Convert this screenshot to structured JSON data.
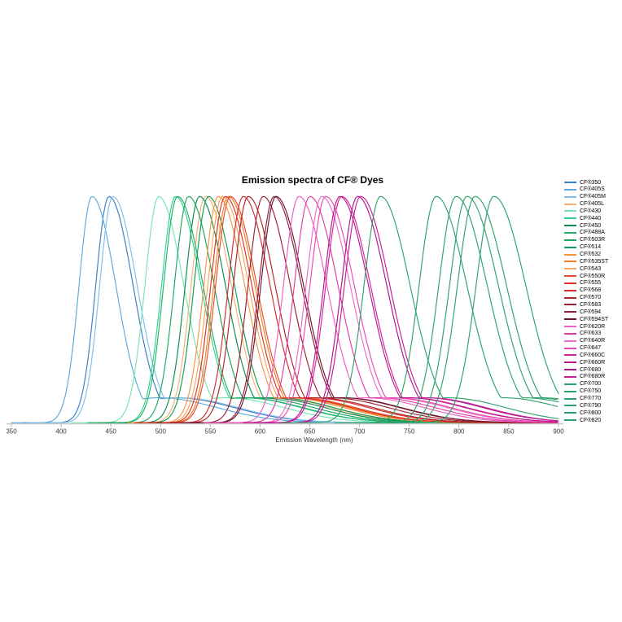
{
  "figure": {
    "title": "Emission spectra of CF® Dyes",
    "xlabel": "Emission Wavelength (nm)"
  },
  "chart_data": {
    "type": "line",
    "title": "Emission spectra of CF® Dyes",
    "xlabel": "Emission Wavelength (nm)",
    "ylabel": "",
    "xlim": [
      350,
      900
    ],
    "ylim": [
      0,
      1.05
    ],
    "x_ticks": [
      350,
      400,
      450,
      500,
      550,
      600,
      650,
      700,
      750,
      800,
      850,
      900
    ],
    "grid": false,
    "legend_position": "right",
    "normalization": "each emission spectrum normalized to a peak intensity of 1",
    "curve_shape": "asymmetric spectral band: steep short-wavelength rise, long-wavelength decay with low shoulder tail",
    "series": [
      {
        "name": "CF®350",
        "color": "#3a7ec6",
        "peak_nm": 448
      },
      {
        "name": "CF®405S",
        "color": "#5aaade",
        "peak_nm": 431
      },
      {
        "name": "CF®405M",
        "color": "#82bfe8",
        "peak_nm": 452
      },
      {
        "name": "CF®405L",
        "color": "#f7b171",
        "peak_nm": 545
      },
      {
        "name": "CF®430",
        "color": "#74e6b2",
        "peak_nm": 498
      },
      {
        "name": "CF®440",
        "color": "#2fd392",
        "peak_nm": 515
      },
      {
        "name": "CF®450",
        "color": "#0d8a4c",
        "peak_nm": 539
      },
      {
        "name": "CF®488A",
        "color": "#21b166",
        "peak_nm": 517
      },
      {
        "name": "CF®503R",
        "color": "#1ea463",
        "peak_nm": 528
      },
      {
        "name": "CF®514",
        "color": "#109c58",
        "peak_nm": 548
      },
      {
        "name": "CF®532",
        "color": "#f7943f",
        "peak_nm": 558
      },
      {
        "name": "CF®535ST",
        "color": "#ef7e23",
        "peak_nm": 568
      },
      {
        "name": "CF®543",
        "color": "#f8a75e",
        "peak_nm": 562
      },
      {
        "name": "CF®550R",
        "color": "#e94c2b",
        "peak_nm": 570
      },
      {
        "name": "CF®555",
        "color": "#e03123",
        "peak_nm": 565
      },
      {
        "name": "CF®568",
        "color": "#d62a2e",
        "peak_nm": 583
      },
      {
        "name": "CF®570",
        "color": "#b12325",
        "peak_nm": 588
      },
      {
        "name": "CF®583",
        "color": "#9d2030",
        "peak_nm": 603
      },
      {
        "name": "CF®594",
        "color": "#8e1f3d",
        "peak_nm": 614
      },
      {
        "name": "CF®594ST",
        "color": "#6e1631",
        "peak_nm": 616
      },
      {
        "name": "CF®620R",
        "color": "#f160c2",
        "peak_nm": 639
      },
      {
        "name": "CF®633",
        "color": "#e23aa4",
        "peak_nm": 650
      },
      {
        "name": "CF®640R",
        "color": "#ef6cc8",
        "peak_nm": 662
      },
      {
        "name": "CF®647",
        "color": "#ea4ab3",
        "peak_nm": 666
      },
      {
        "name": "CF®660C",
        "color": "#d6219c",
        "peak_nm": 682
      },
      {
        "name": "CF®660R",
        "color": "#bd1787",
        "peak_nm": 680
      },
      {
        "name": "CF®680",
        "color": "#a9158b",
        "peak_nm": 698
      },
      {
        "name": "CF®680R",
        "color": "#c51e97",
        "peak_nm": 701
      },
      {
        "name": "CF®700",
        "color": "#2ea26d",
        "peak_nm": 721
      },
      {
        "name": "CF®750",
        "color": "#2ea26d",
        "peak_nm": 777
      },
      {
        "name": "CF®770",
        "color": "#2ea26d",
        "peak_nm": 797
      },
      {
        "name": "CF®790",
        "color": "#2ea26d",
        "peak_nm": 808
      },
      {
        "name": "CF®800",
        "color": "#2ea26d",
        "peak_nm": 816
      },
      {
        "name": "CF®820",
        "color": "#2ea26d",
        "peak_nm": 835
      }
    ]
  }
}
